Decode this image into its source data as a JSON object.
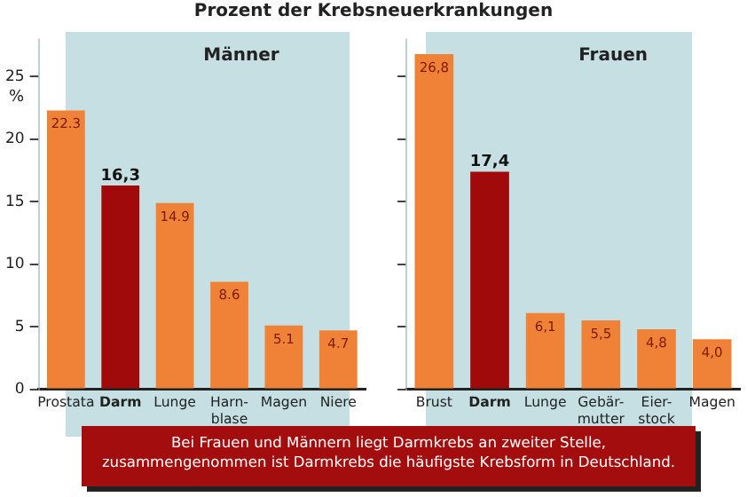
{
  "chart_data": [
    {
      "type": "bar",
      "title": "Prozent der Krebsneuerkrankungen",
      "subtitle": "Männer",
      "ylabel": "%",
      "categories": [
        "Prostata",
        "Darm",
        "Lunge",
        "Harn-\nblase",
        "Magen",
        "Niere"
      ],
      "values": [
        22.3,
        16.3,
        14.9,
        8.6,
        5.1,
        4.7
      ],
      "colors": [
        "#f08238",
        "#a00a0a",
        "#f08238",
        "#f08238",
        "#f08238",
        "#f08238"
      ],
      "value_labels": [
        "22.3",
        "16,3",
        "14.9",
        "8.6",
        "5.1",
        "4.7"
      ],
      "ylim": [
        0,
        28
      ],
      "yticks": [
        0,
        5,
        10,
        15,
        20,
        25
      ],
      "grid": false,
      "legend": false,
      "annotations": [
        "Bei Frauen und Männern liegt Darmkrebs an zweiter Stelle,\nzusammengenommen ist Darmkrebs die häufigste Krebsform in Deutschland."
      ]
    },
    {
      "type": "bar",
      "subtitle": "Frauen",
      "categories": [
        "Brust",
        "Darm",
        "Lunge",
        "Gebär-\nmutter",
        "Eier-\nstock",
        "Magen"
      ],
      "values": [
        26.8,
        17.4,
        6.1,
        5.5,
        4.8,
        4.0
      ],
      "colors": [
        "#f08238",
        "#a00a0a",
        "#f08238",
        "#f08238",
        "#f08238",
        "#f08238"
      ],
      "value_labels": [
        "26,8",
        "17,4",
        "6,1",
        "5,5",
        "4,8",
        "4,0"
      ],
      "ylim": [
        0,
        28
      ],
      "yticks": [
        {
          "value": 0,
          "label": null
        },
        {
          "value": 5,
          "label": null
        },
        {
          "value": 10,
          "label": null
        },
        {
          "value": 15,
          "label": null
        },
        {
          "value": 20,
          "label": null
        },
        {
          "value": 25,
          "label": null
        }
      ],
      "tick_labels": "x",
      "grid": false,
      "legend": false
    }
  ]
}
